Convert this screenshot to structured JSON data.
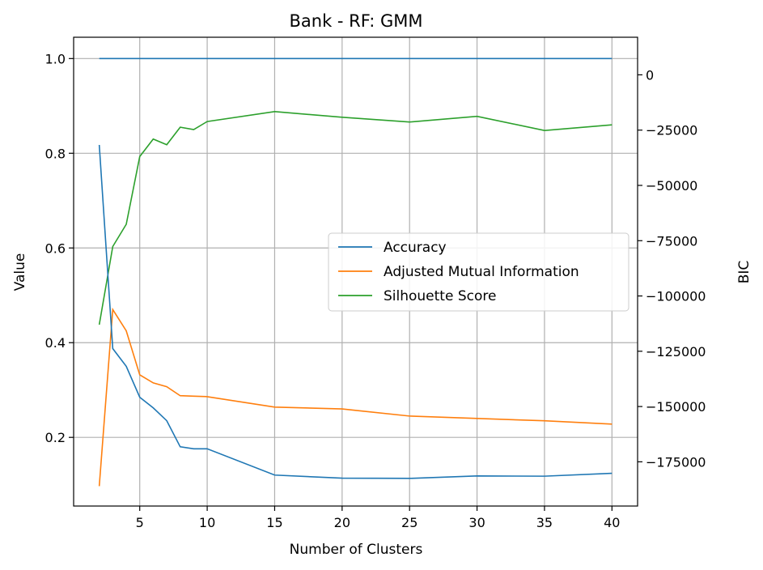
{
  "chart_data": {
    "type": "line",
    "title": "Bank - RF: GMM",
    "xlabel": "Number of Clusters",
    "ylabel": "Value",
    "y2label": "BIC",
    "xlim": [
      0.1,
      41.9
    ],
    "ylim": [
      0.055,
      1.045
    ],
    "y2lim": [
      -195000,
      17000
    ],
    "xticks": [
      5,
      10,
      15,
      20,
      25,
      30,
      35,
      40
    ],
    "yticks": [
      0.2,
      0.4,
      0.6,
      0.8,
      1.0
    ],
    "y2ticks": [
      0,
      -25000,
      -50000,
      -75000,
      -100000,
      -125000,
      -150000,
      -175000
    ],
    "grid": true,
    "legend_position": "center-right",
    "x": [
      2,
      3,
      4,
      5,
      6,
      7,
      8,
      9,
      10,
      15,
      20,
      25,
      30,
      35,
      40
    ],
    "series": [
      {
        "name": "Accuracy",
        "color": "#1f77b4",
        "values": [
          1.0,
          1.0,
          1.0,
          1.0,
          1.0,
          1.0,
          1.0,
          1.0,
          1.0,
          1.0,
          1.0,
          1.0,
          1.0,
          1.0,
          1.0
        ]
      },
      {
        "name": "Adjusted Mutual Information",
        "color": "#ff7f0e",
        "values": [
          0.097,
          0.47,
          0.425,
          0.332,
          0.315,
          0.307,
          0.288,
          0.287,
          0.286,
          0.264,
          0.26,
          0.245,
          0.24,
          0.235,
          0.228
        ]
      },
      {
        "name": "Silhouette Score",
        "color": "#2ca02c",
        "values": [
          0.438,
          0.603,
          0.65,
          0.793,
          0.83,
          0.818,
          0.855,
          0.85,
          0.867,
          0.888,
          0.876,
          0.866,
          0.878,
          0.848,
          0.86
        ]
      }
    ],
    "bic_series": {
      "color": "#1f77b4",
      "values": [
        -31700,
        -123800,
        -131800,
        -145800,
        -150600,
        -156400,
        -168200,
        -169100,
        -169100,
        -181000,
        -182400,
        -182500,
        -181400,
        -181500,
        -180200
      ]
    }
  }
}
